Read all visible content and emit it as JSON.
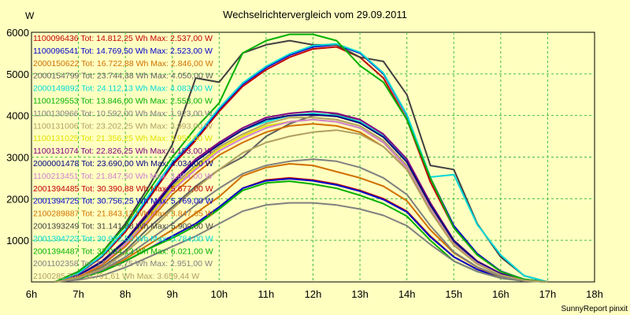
{
  "chart_data": {
    "type": "line",
    "title": "Wechselrichtervergleich vom 29.09.2011",
    "ylabel": "W",
    "xlabel": "",
    "footer": "SunnyReport pinxit",
    "xlim": [
      6,
      18
    ],
    "ylim": [
      0,
      6000
    ],
    "x_ticks": [
      "6h",
      "7h",
      "8h",
      "9h",
      "10h",
      "11h",
      "12h",
      "13h",
      "14h",
      "15h",
      "16h",
      "17h",
      "18h"
    ],
    "y_ticks": [
      "1000",
      "2000",
      "3000",
      "4000",
      "5000",
      "6000"
    ],
    "grid": true,
    "legend_position": "top-left",
    "x": [
      6.5,
      7,
      7.5,
      8,
      8.5,
      9,
      9.5,
      10,
      10.5,
      11,
      11.5,
      12,
      12.5,
      13,
      13.5,
      14,
      14.5,
      15,
      15.5,
      16,
      16.5,
      17
    ],
    "series": [
      {
        "name": "1100096436 Tot: 14.812,25 Wh Max: 2.537,00 W",
        "color": "#c00000",
        "values": [
          0,
          80,
          250,
          500,
          800,
          1100,
          1400,
          1800,
          2250,
          2450,
          2500,
          2450,
          2350,
          2200,
          2000,
          1700,
          1100,
          600,
          300,
          100,
          30,
          0
        ]
      },
      {
        "name": "1100096541 Tot: 14.769,50 Wh Max: 2.523,00 W",
        "color": "#0000cc",
        "values": [
          0,
          80,
          250,
          500,
          800,
          1100,
          1400,
          1800,
          2250,
          2430,
          2480,
          2430,
          2330,
          2180,
          1980,
          1680,
          1080,
          600,
          300,
          100,
          30,
          0
        ]
      },
      {
        "name": "2000150622 Tot: 16.722,88 Wh Max: 2.846,00 W",
        "color": "#d07000",
        "values": [
          0,
          80,
          250,
          550,
          900,
          1250,
          1650,
          2050,
          2550,
          2750,
          2840,
          2800,
          2650,
          2500,
          2300,
          1950,
          1250,
          700,
          350,
          120,
          30,
          0
        ]
      },
      {
        "name": "2000154799 Tot: 23.744,38 Wh Max: 4.050,00 W",
        "color": "#606060",
        "values": [
          0,
          100,
          350,
          750,
          1300,
          1800,
          2300,
          2700,
          3000,
          3500,
          3800,
          4000,
          4030,
          3850,
          3500,
          2900,
          1900,
          1000,
          500,
          200,
          50,
          0
        ]
      },
      {
        "name": "2000149892 Tot: 24.112,13 Wh Max: 4.083,00 W",
        "color": "#00d8d8",
        "values": [
          0,
          150,
          500,
          1000,
          1700,
          2400,
          2900,
          3300,
          3650,
          3850,
          4000,
          4050,
          4000,
          3850,
          3500,
          2900,
          1850,
          1000,
          500,
          200,
          50,
          0
        ]
      },
      {
        "name": "1100129553 Tot: 13.846,00 Wh Max: 2.558,00 W",
        "color": "#00b000",
        "values": [
          0,
          80,
          250,
          500,
          800,
          1050,
          1350,
          1750,
          2200,
          2380,
          2420,
          2350,
          2250,
          2080,
          1880,
          1580,
          1000,
          500,
          250,
          90,
          25,
          0
        ]
      },
      {
        "name": "1100130966 Tot: 10.592,00 Wh Max: 1.923,00 W",
        "color": "#808080",
        "values": [
          0,
          50,
          150,
          350,
          600,
          850,
          1100,
          1400,
          1700,
          1850,
          1900,
          1900,
          1850,
          1750,
          1600,
          1350,
          900,
          500,
          250,
          90,
          20,
          0
        ]
      },
      {
        "name": "1100131006 Tot: 23.202,25 Wh Max: 3.993,00 W",
        "color": "#b0a060",
        "values": [
          0,
          150,
          450,
          950,
          1600,
          2300,
          2800,
          3250,
          3550,
          3800,
          3950,
          3950,
          3900,
          3750,
          3400,
          2800,
          1800,
          950,
          450,
          180,
          40,
          0
        ]
      },
      {
        "name": "1100131025 Tot: 21.356,25 Wh Max: 3.950,00 W",
        "color": "#e0e000",
        "values": [
          0,
          140,
          430,
          900,
          1550,
          2250,
          2750,
          3200,
          3500,
          3750,
          3850,
          3900,
          3850,
          3700,
          3350,
          2750,
          1750,
          900,
          450,
          170,
          40,
          0
        ]
      },
      {
        "name": "1100131074 Tot: 22.826,25 Wh Max: 4.183,00 W",
        "color": "#800080",
        "values": [
          0,
          160,
          500,
          1000,
          1700,
          2400,
          2950,
          3350,
          3700,
          3950,
          4050,
          4100,
          4050,
          3900,
          3550,
          2950,
          1900,
          1000,
          500,
          200,
          50,
          0
        ]
      },
      {
        "name": "2000001478 Tot: 23.690,00 Wh Max: 4.034,00 W",
        "color": "#000080",
        "values": [
          0,
          150,
          480,
          980,
          1650,
          2350,
          2900,
          3300,
          3650,
          3900,
          4000,
          4020,
          3980,
          3820,
          3480,
          2880,
          1850,
          980,
          480,
          190,
          45,
          0
        ]
      },
      {
        "name": "1100213451 Tot: 21.847,50 Wh Max: 3.934,00 W",
        "color": "#d080d0",
        "values": [
          0,
          130,
          420,
          900,
          1500,
          2200,
          2700,
          3150,
          3450,
          3700,
          3850,
          3900,
          3850,
          3700,
          3350,
          2750,
          1750,
          900,
          450,
          170,
          40,
          0
        ]
      },
      {
        "name": "2001394485 Tot: 30.390,88 Wh Max: 5.677,00 W",
        "color": "#c00000",
        "values": [
          0,
          200,
          600,
          1200,
          2000,
          2800,
          3400,
          4100,
          4700,
          5100,
          5400,
          5600,
          5650,
          5400,
          4900,
          3900,
          2400,
          1300,
          650,
          250,
          60,
          0
        ]
      },
      {
        "name": "2001394725 Tot: 30.756,25 Wh Max: 5.769,00 W",
        "color": "#0000cc",
        "values": [
          0,
          200,
          620,
          1250,
          2050,
          2850,
          3450,
          4150,
          4750,
          5150,
          5450,
          5650,
          5700,
          5500,
          5000,
          4000,
          2500,
          1350,
          680,
          260,
          60,
          0
        ]
      },
      {
        "name": "2100289887 Tot: 21.843,13 Wh Max: 3.847,65 W",
        "color": "#d07000",
        "values": [
          0,
          120,
          400,
          850,
          1450,
          2100,
          2600,
          3050,
          3350,
          3600,
          3750,
          3800,
          3750,
          3600,
          3250,
          2700,
          1700,
          880,
          430,
          160,
          40,
          0
        ]
      },
      {
        "name": "2001393249 Tot: 31.141,88 Wh Max: 5.900,00 W",
        "color": "#404040",
        "values": [
          0,
          250,
          700,
          1400,
          2300,
          3300,
          4900,
          4800,
          5500,
          5700,
          5800,
          5700,
          5700,
          5400,
          5300,
          4500,
          2800,
          2700,
          1400,
          600,
          150,
          0
        ]
      },
      {
        "name": "2001394723 Tot: 30.952,50 Wh Max: 5.784,00 W",
        "color": "#00d8d8",
        "values": [
          0,
          210,
          630,
          1260,
          2080,
          2880,
          3480,
          4180,
          4780,
          5180,
          5480,
          5680,
          5720,
          5520,
          5020,
          4020,
          2520,
          2580,
          1380,
          650,
          150,
          0
        ]
      },
      {
        "name": "2001394487 Tot: 32.034,13 Wh Max: 6.021,00 W",
        "color": "#00b000",
        "values": [
          0,
          250,
          700,
          1350,
          2200,
          3000,
          3700,
          4300,
          5500,
          5800,
          5950,
          5950,
          5800,
          5200,
          4800,
          3900,
          2500,
          1300,
          650,
          250,
          60,
          0
        ]
      },
      {
        "name": "2001102358 Tot: 17.263,75 Wh Max: 2.951,00 W",
        "color": "#808080",
        "values": [
          0,
          90,
          280,
          600,
          1000,
          1400,
          1850,
          2250,
          2600,
          2800,
          2900,
          2950,
          2900,
          2750,
          2500,
          2100,
          1350,
          720,
          360,
          130,
          30,
          0
        ]
      },
      {
        "name": "2100285 Tot: 16.791,61 Wh Max: 3.659,44 W",
        "color": "#b0a060",
        "values": [
          0,
          100,
          320,
          700,
          1200,
          1750,
          2250,
          2700,
          3100,
          3350,
          3500,
          3600,
          3650,
          3550,
          3250,
          2700,
          1700,
          880,
          430,
          160,
          40,
          0
        ]
      }
    ]
  }
}
